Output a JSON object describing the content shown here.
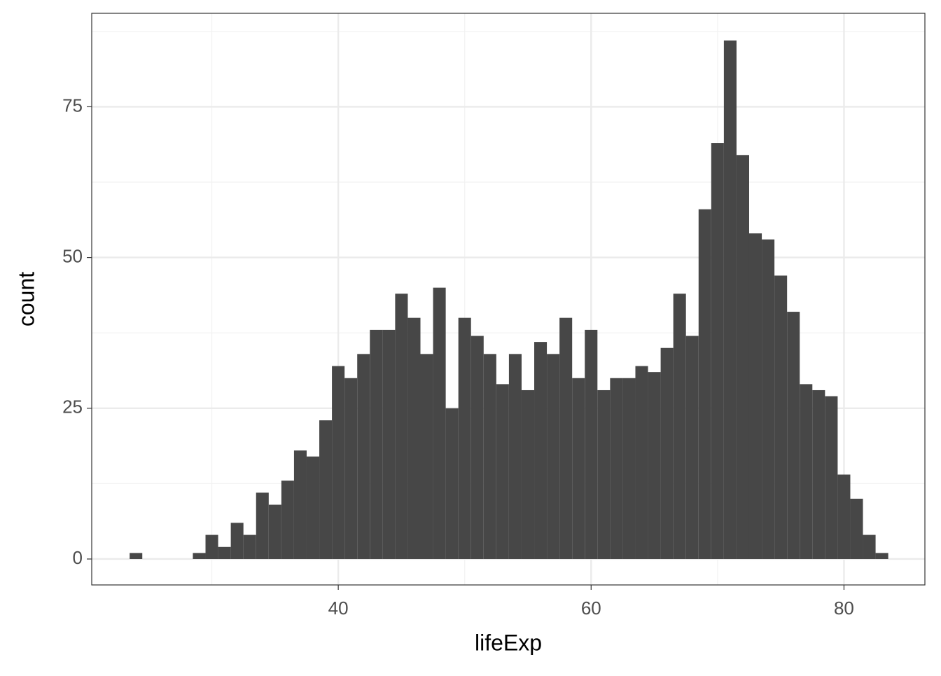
{
  "chart_data": {
    "type": "histogram",
    "x_label": "lifeExp",
    "y_label": "count",
    "bins": [
      23.5,
      24.5,
      25.5,
      26.5,
      27.5,
      28.5,
      29.5,
      30.5,
      31.5,
      32.5,
      33.5,
      34.5,
      35.5,
      36.5,
      37.5,
      38.5,
      39.5,
      40.5,
      41.5,
      42.5,
      43.5,
      44.5,
      45.5,
      46.5,
      47.5,
      48.5,
      49.5,
      50.5,
      51.5,
      52.5,
      53.5,
      54.5,
      55.5,
      56.5,
      57.5,
      58.5,
      59.5,
      60.5,
      61.5,
      62.5,
      63.5,
      64.5,
      65.5,
      66.5,
      67.5,
      68.5,
      69.5,
      70.5,
      71.5,
      72.5,
      73.5,
      74.5,
      75.5,
      76.5,
      77.5,
      78.5,
      79.5,
      80.5,
      81.5,
      82.5,
      83.5
    ],
    "counts": [
      1,
      0,
      0,
      0,
      0,
      1,
      4,
      2,
      6,
      4,
      11,
      9,
      13,
      18,
      17,
      23,
      32,
      30,
      34,
      38,
      38,
      44,
      40,
      34,
      45,
      25,
      40,
      37,
      34,
      29,
      34,
      28,
      36,
      34,
      40,
      30,
      38,
      28,
      30,
      30,
      32,
      31,
      35,
      44,
      37,
      58,
      69,
      86,
      67,
      54,
      53,
      47,
      41,
      29,
      28,
      27,
      14,
      10,
      4,
      1
    ],
    "color": "#474747",
    "xlim": [
      20.5,
      86.4
    ],
    "ylim": [
      -4.3,
      90.5
    ],
    "xticks": [
      40,
      60,
      80
    ],
    "yticks": [
      0,
      25,
      50,
      75
    ],
    "xminor": [
      30,
      50,
      70
    ],
    "yminor": [
      12.5,
      37.5,
      62.5,
      87.5
    ],
    "grid": true
  }
}
